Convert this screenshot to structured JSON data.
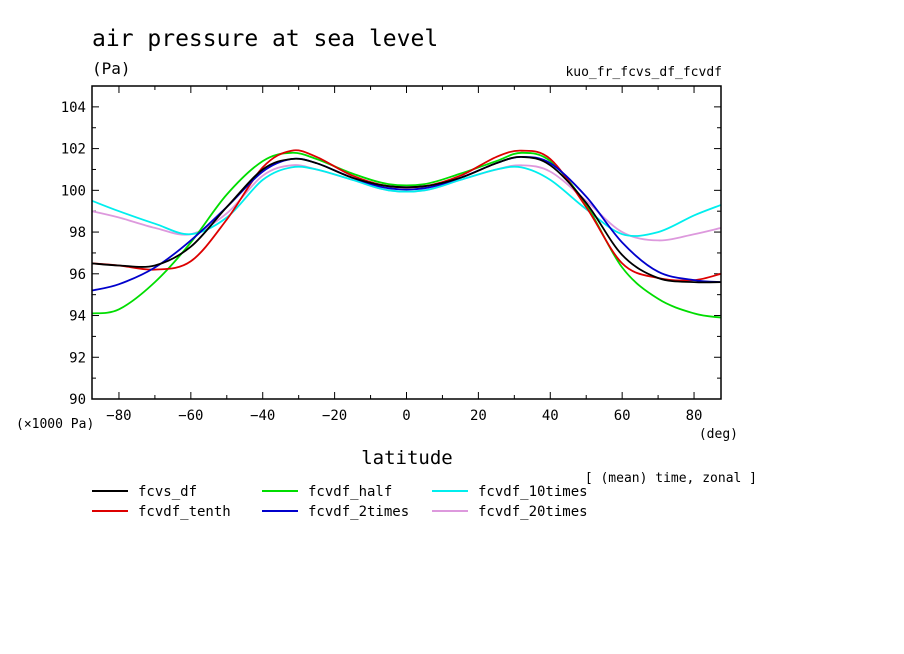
{
  "chart_data": {
    "type": "line",
    "title": "air pressure at sea level",
    "y_units": "(Pa)",
    "experiment": "kuo_fr_fcvs_df_fcvdf",
    "xlabel": "latitude",
    "x_units": "(deg)",
    "y_scale_note": "(×1000 Pa)",
    "averaging_note": "[ (mean) time, zonal ]",
    "xlim": [
      -87.5,
      87.5
    ],
    "ylim": [
      90,
      105
    ],
    "xticks": [
      -80,
      -60,
      -40,
      -20,
      0,
      20,
      40,
      60,
      80
    ],
    "yticks": [
      90,
      92,
      94,
      96,
      98,
      100,
      102,
      104
    ],
    "x": [
      -87.5,
      -80,
      -70,
      -60,
      -50,
      -40,
      -32,
      -25,
      -15,
      -5,
      5,
      15,
      25,
      32,
      40,
      50,
      60,
      70,
      80,
      87.5
    ],
    "series": [
      {
        "name": "fcvs_df",
        "color": "#000000",
        "values": [
          96.5,
          96.4,
          96.4,
          97.3,
          99.2,
          101.0,
          101.5,
          101.3,
          100.6,
          100.2,
          100.2,
          100.6,
          101.3,
          101.6,
          101.2,
          99.4,
          96.9,
          95.8,
          95.6,
          95.6
        ]
      },
      {
        "name": "fcvdf_tenth",
        "color": "#dd0000",
        "values": [
          96.5,
          96.4,
          96.2,
          96.6,
          98.6,
          101.1,
          101.9,
          101.6,
          100.7,
          100.2,
          100.2,
          100.7,
          101.6,
          101.9,
          101.5,
          99.2,
          96.5,
          95.8,
          95.7,
          96.0
        ]
      },
      {
        "name": "fcvdf_half",
        "color": "#00dd00",
        "values": [
          94.1,
          94.3,
          95.6,
          97.5,
          99.8,
          101.4,
          101.8,
          101.5,
          100.8,
          100.3,
          100.3,
          100.8,
          101.4,
          101.8,
          101.4,
          99.3,
          96.3,
          94.8,
          94.1,
          93.9
        ]
      },
      {
        "name": "fcvdf_2times",
        "color": "#0000cc",
        "values": [
          95.2,
          95.5,
          96.3,
          97.6,
          99.2,
          100.9,
          101.5,
          101.3,
          100.6,
          100.1,
          100.1,
          100.6,
          101.3,
          101.6,
          101.3,
          99.7,
          97.5,
          96.1,
          95.7,
          95.6
        ]
      },
      {
        "name": "fcvdf_10times",
        "color": "#00eeee",
        "values": [
          99.5,
          99.0,
          98.4,
          97.9,
          98.7,
          100.5,
          101.1,
          101.0,
          100.5,
          100.0,
          100.0,
          100.5,
          101.0,
          101.1,
          100.5,
          99.1,
          97.9,
          98.0,
          98.8,
          99.3
        ]
      },
      {
        "name": "fcvdf_20times",
        "color": "#dd99dd",
        "values": [
          99.0,
          98.7,
          98.2,
          97.9,
          98.9,
          100.7,
          101.2,
          101.0,
          100.5,
          100.0,
          100.0,
          100.5,
          101.0,
          101.2,
          100.9,
          99.5,
          98.0,
          97.6,
          97.9,
          98.2
        ]
      }
    ]
  }
}
